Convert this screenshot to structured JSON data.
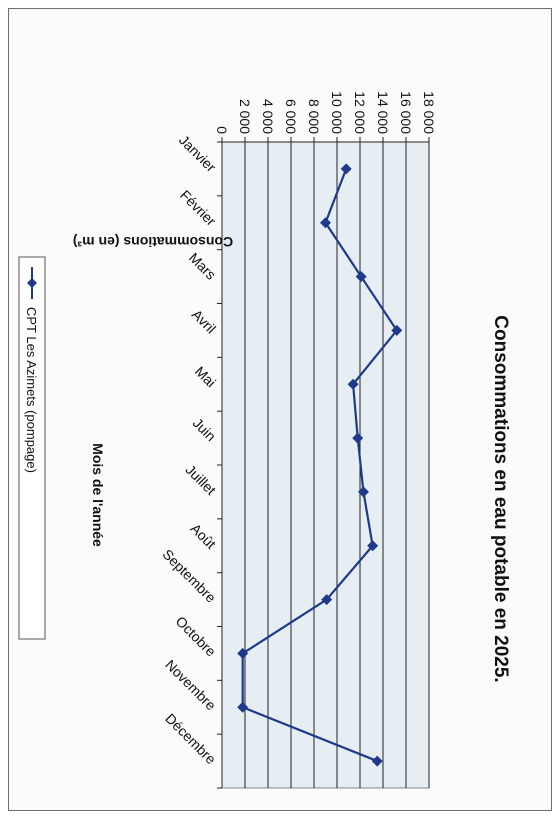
{
  "chart_data": {
    "type": "line",
    "title": "Consommations en eau potable en 2025.",
    "xlabel": "Mois de l'année",
    "ylabel": "Consommations (en m³)",
    "categories": [
      "Janvier",
      "Février",
      "Mars",
      "Avril",
      "Mai",
      "Juin",
      "Juillet",
      "Août",
      "Septembre",
      "Octobre",
      "Novembre",
      "Décembre"
    ],
    "series": [
      {
        "name": "CPT Les Azimets (pompage)",
        "values": [
          10800,
          9000,
          12100,
          15200,
          11400,
          11800,
          12300,
          13100,
          9100,
          1800,
          1800,
          13500
        ],
        "color": "#1f3a8a"
      }
    ],
    "ylim": [
      0,
      18000
    ],
    "yticks": [
      0,
      2000,
      4000,
      6000,
      8000,
      10000,
      12000,
      14000,
      16000,
      18000
    ],
    "ytick_labels": [
      "0",
      "2 000",
      "4 000",
      "6 000",
      "8 000",
      "10 000",
      "12 000",
      "14 000",
      "16 000",
      "18 000"
    ],
    "grid": true,
    "legend": "right",
    "plot_background": "#e6eef4",
    "marker": "diamond",
    "orientation": "rotated-90-clockwise"
  }
}
